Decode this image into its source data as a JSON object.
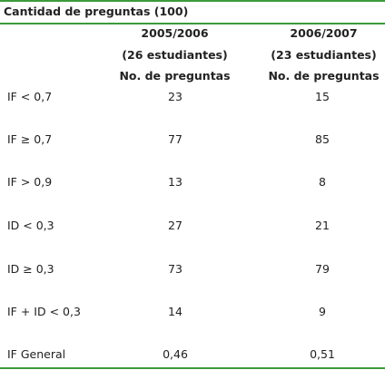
{
  "caption": "Cantidad de preguntas (100)",
  "columns": [
    {
      "year": "2005/2006",
      "students": "(26 estudiantes)",
      "subheader": "No. de preguntas"
    },
    {
      "year": "2006/2007",
      "students": "(23 estudiantes)",
      "subheader": "No. de preguntas"
    }
  ],
  "rows": [
    {
      "label": "IF < 0,7",
      "v1": "23",
      "v2": "15"
    },
    {
      "label": "IF ≥ 0,7",
      "v1": "77",
      "v2": "85"
    },
    {
      "label": "IF > 0,9",
      "v1": "13",
      "v2": "8"
    },
    {
      "label": "ID < 0,3",
      "v1": "27",
      "v2": "21"
    },
    {
      "label": "ID ≥ 0,3",
      "v1": "73",
      "v2": "79"
    },
    {
      "label": "IF + ID < 0,3",
      "v1": "14",
      "v2": "9"
    },
    {
      "label": "IF General",
      "v1": "0,46",
      "v2": "0,51"
    }
  ],
  "colors": {
    "rule": "#3c9a3c",
    "text": "#222222"
  }
}
